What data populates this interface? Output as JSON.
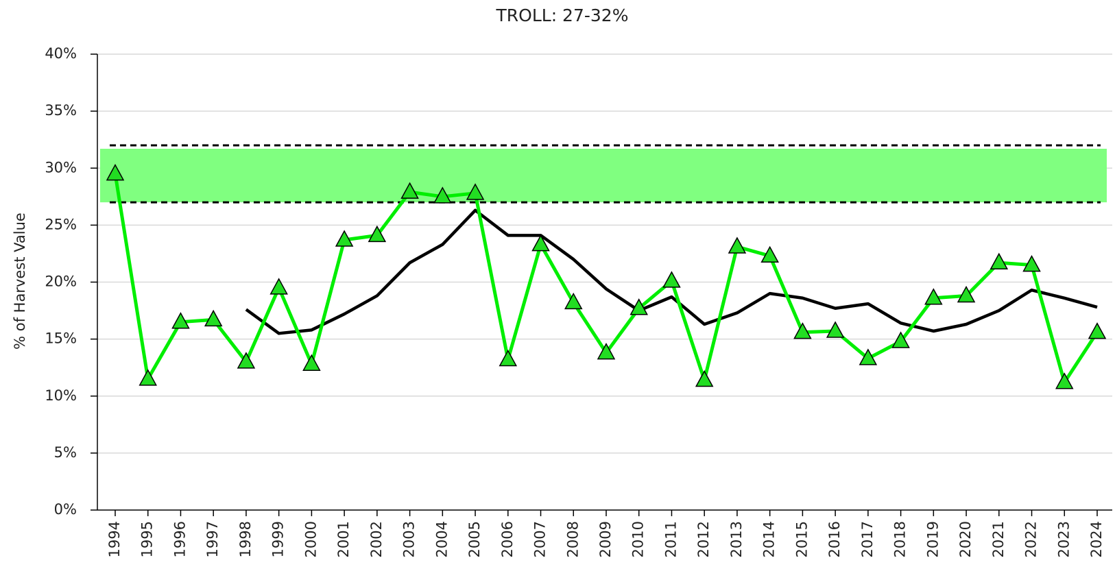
{
  "chart_data": {
    "type": "line",
    "title": "TROLL: 27-32%",
    "ylabel": "% of Harvest Value",
    "categories": [
      "1994",
      "1995",
      "1996",
      "1997",
      "1998",
      "1999",
      "2000",
      "2001",
      "2002",
      "2003",
      "2004",
      "2005",
      "2006",
      "2007",
      "2008",
      "2009",
      "2010",
      "2011",
      "2012",
      "2013",
      "2014",
      "2015",
      "2016",
      "2017",
      "2018",
      "2019",
      "2020",
      "2021",
      "2022",
      "2023",
      "2024"
    ],
    "series": [
      {
        "color": "#00ee00",
        "marker_color": "#22dd22",
        "marker": "triangle",
        "values": [
          29.5,
          11.5,
          16.5,
          16.7,
          13.0,
          19.5,
          12.8,
          23.7,
          24.1,
          27.9,
          27.5,
          27.8,
          13.2,
          23.3,
          18.2,
          13.8,
          17.7,
          20.1,
          11.4,
          23.1,
          22.3,
          15.6,
          15.7,
          13.3,
          14.8,
          18.6,
          18.8,
          21.7,
          21.5,
          11.2,
          15.6
        ]
      },
      {
        "color": "#000000",
        "values": [
          null,
          null,
          null,
          null,
          17.6,
          15.5,
          15.8,
          17.2,
          18.8,
          21.7,
          23.3,
          26.3,
          24.1,
          24.1,
          22.0,
          19.4,
          17.5,
          18.7,
          16.3,
          17.3,
          19.0,
          18.6,
          17.7,
          18.1,
          16.4,
          15.7,
          16.3,
          17.5,
          19.3,
          18.6,
          17.8
        ]
      }
    ],
    "band": [
      27,
      32
    ],
    "band_color": "#80ff80",
    "ylim": [
      0,
      40
    ],
    "yticks": [
      {
        "value": 0,
        "label": "0%"
      },
      {
        "value": 5,
        "label": "5%"
      },
      {
        "value": 10,
        "label": "10%"
      },
      {
        "value": 15,
        "label": "15%"
      },
      {
        "value": 20,
        "label": "20%"
      },
      {
        "value": 25,
        "label": "25%"
      },
      {
        "value": 30,
        "label": "30%"
      },
      {
        "value": 35,
        "label": "35%"
      },
      {
        "value": 40,
        "label": "40%"
      }
    ],
    "grid": true
  }
}
